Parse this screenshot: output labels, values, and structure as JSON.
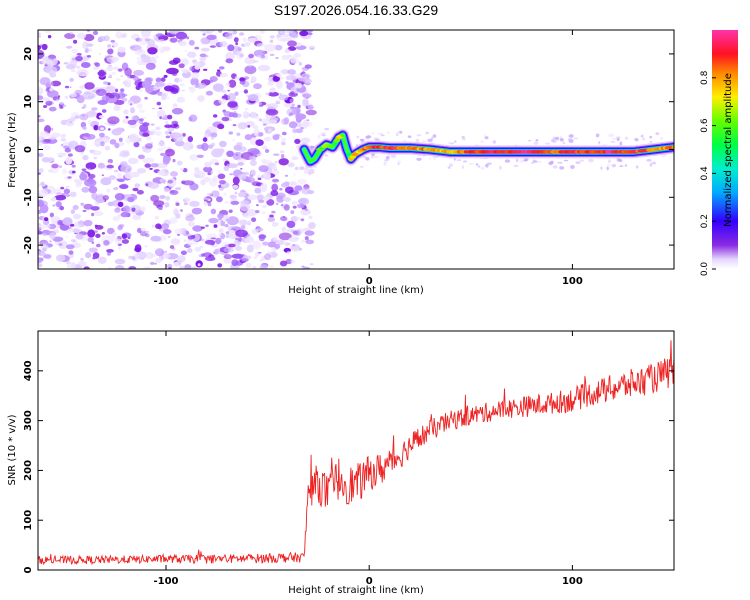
{
  "title": "S197.2026.054.16.33.G29",
  "colors": {
    "snr_line": "#ee2222",
    "axis": "#000000"
  },
  "chart_data": [
    {
      "type": "heatmap",
      "name": "spectrogram",
      "xlabel": "Height of straight line (km)",
      "ylabel": "Frequency (Hz)",
      "xlim": [
        -163,
        150
      ],
      "ylim": [
        -25,
        25
      ],
      "xticks": [
        -100,
        0,
        100
      ],
      "xtick_labels": [
        "-100",
        "0",
        "100"
      ],
      "yticks": [
        -20,
        -10,
        0,
        10,
        20
      ],
      "ytick_labels": [
        "-20",
        "-10",
        "0",
        "10",
        "20"
      ],
      "noise_region_x": [
        -163,
        -32
      ],
      "signal_track": {
        "x": [
          -32,
          -29,
          -27,
          -24,
          -21,
          -18,
          -15,
          -13,
          -11,
          -9,
          -7,
          -5,
          -3,
          0,
          5,
          10,
          20,
          30,
          40,
          50,
          60,
          70,
          80,
          90,
          100,
          110,
          120,
          130,
          140,
          150
        ],
        "freq_hz": [
          0.0,
          -2.5,
          -2.0,
          0.0,
          1.0,
          0.5,
          2.5,
          3.0,
          0.0,
          -2.0,
          -1.0,
          -0.5,
          0.0,
          0.5,
          0.5,
          0.3,
          0.3,
          0.0,
          -0.5,
          -0.5,
          -0.5,
          -0.5,
          -0.5,
          -0.5,
          -0.5,
          -0.5,
          -0.5,
          -0.5,
          0.0,
          0.5
        ],
        "amplitude": [
          0.25,
          0.3,
          0.3,
          0.55,
          0.65,
          0.5,
          0.7,
          0.65,
          0.45,
          0.7,
          0.75,
          0.75,
          0.8,
          0.9,
          0.9,
          0.9,
          0.85,
          0.8,
          0.75,
          0.9,
          0.95,
          0.9,
          0.95,
          0.85,
          0.9,
          0.9,
          0.95,
          0.9,
          0.85,
          0.8
        ]
      },
      "colorbar": {
        "label": "Normalized spectral amplitude",
        "range": [
          0,
          1
        ],
        "ticks": [
          0.0,
          0.2,
          0.4,
          0.6,
          0.8
        ],
        "tick_labels": [
          "0.0",
          "0.2",
          "0.4",
          "0.6",
          "0.8"
        ]
      }
    },
    {
      "type": "line",
      "name": "snr",
      "xlabel": "Height of straight line (km)",
      "ylabel": "SNR (10 * v/v)",
      "xlim": [
        -163,
        150
      ],
      "ylim": [
        0,
        480
      ],
      "xticks": [
        -100,
        0,
        100
      ],
      "xtick_labels": [
        "-100",
        "0",
        "100"
      ],
      "yticks": [
        0,
        100,
        200,
        300,
        400
      ],
      "ytick_labels": [
        "0",
        "100",
        "200",
        "300",
        "400"
      ],
      "series": [
        {
          "name": "SNR",
          "x": [
            -163,
            -140,
            -120,
            -100,
            -80,
            -60,
            -50,
            -40,
            -32,
            -30,
            -25,
            -20,
            -15,
            -10,
            -5,
            0,
            5,
            10,
            15,
            20,
            25,
            30,
            40,
            50,
            60,
            70,
            80,
            90,
            100,
            110,
            120,
            130,
            140,
            150
          ],
          "mean": [
            20,
            20,
            21,
            22,
            22,
            23,
            24,
            25,
            25,
            160,
            175,
            150,
            185,
            170,
            175,
            195,
            200,
            215,
            230,
            250,
            265,
            280,
            300,
            310,
            318,
            325,
            330,
            335,
            342,
            355,
            365,
            375,
            385,
            400
          ],
          "noise_amp": [
            8,
            8,
            8,
            8,
            9,
            9,
            10,
            10,
            10,
            35,
            40,
            40,
            45,
            40,
            40,
            35,
            35,
            30,
            28,
            25,
            25,
            22,
            20,
            20,
            20,
            20,
            22,
            22,
            25,
            25,
            28,
            30,
            30,
            35
          ]
        }
      ]
    }
  ]
}
